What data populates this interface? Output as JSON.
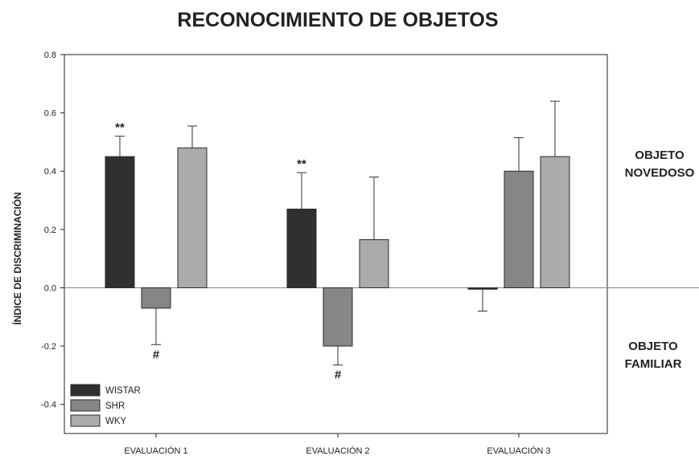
{
  "chart_data": {
    "type": "bar",
    "title": "RECONOCIMIENTO DE OBJETOS",
    "ylabel": "ÍNDICE DE DISCRIMINACIÓN",
    "xlabel": "",
    "ylim": [
      -0.5,
      0.8
    ],
    "yticks": [
      "0.8",
      "0.6",
      "0.4",
      "0.2",
      "0.0",
      "-0.2",
      "-0.4"
    ],
    "ytick_values": [
      0.8,
      0.6,
      0.4,
      0.2,
      0.0,
      -0.2,
      -0.4
    ],
    "categories": [
      "EVALUACIÓN 1",
      "EVALUACIÓN 2",
      "EVALUACIÓN 3"
    ],
    "series": [
      {
        "name": "WISTAR",
        "color": "#303030",
        "values": [
          0.45,
          0.27,
          -0.005
        ],
        "errors": [
          0.07,
          0.125,
          0.075
        ]
      },
      {
        "name": "SHR",
        "color": "#868686",
        "values": [
          -0.07,
          -0.2,
          0.4
        ],
        "errors": [
          0.125,
          0.065,
          0.115
        ]
      },
      {
        "name": "WKY",
        "color": "#ababab",
        "values": [
          0.48,
          0.165,
          0.45
        ],
        "errors": [
          0.075,
          0.215,
          0.19
        ]
      }
    ],
    "annotations": [
      {
        "text": "**",
        "category": 0,
        "series": 0
      },
      {
        "text": "#",
        "category": 0,
        "series": 1
      },
      {
        "text": "**",
        "category": 1,
        "series": 0
      },
      {
        "text": "#",
        "category": 1,
        "series": 1
      }
    ],
    "side_labels": {
      "top": [
        "OBJETO",
        "NOVEDOSO"
      ],
      "bottom": [
        "OBJETO",
        "FAMILIAR"
      ]
    },
    "legend_position": "bottom-left",
    "grid": false
  }
}
